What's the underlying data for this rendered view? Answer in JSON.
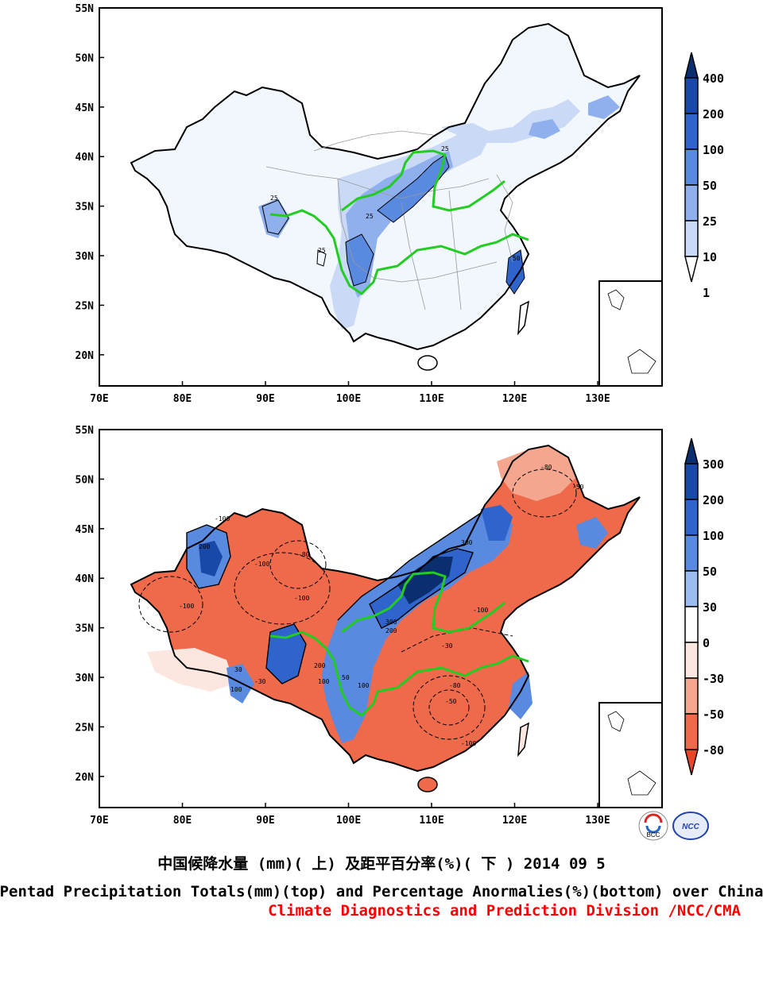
{
  "maps": [
    {
      "id": "top",
      "latitude_ticks": [
        "55N",
        "50N",
        "45N",
        "40N",
        "35N",
        "30N",
        "25N",
        "20N"
      ],
      "longitude_ticks": [
        "70E",
        "80E",
        "90E",
        "100E",
        "110E",
        "120E",
        "130E"
      ],
      "colorbar": {
        "labels": [
          "400",
          "200",
          "100",
          "50",
          "25",
          "10",
          "1"
        ],
        "colors": [
          "#0a2e6e",
          "#1848a8",
          "#2e64cc",
          "#5a8ae0",
          "#8fb0ec",
          "#c9d9f6",
          "#ffffff"
        ]
      },
      "contour_labels": [
        "25",
        "25",
        "25",
        "25",
        "50"
      ]
    },
    {
      "id": "bottom",
      "latitude_ticks": [
        "55N",
        "50N",
        "45N",
        "40N",
        "35N",
        "30N",
        "25N",
        "20N"
      ],
      "longitude_ticks": [
        "70E",
        "80E",
        "90E",
        "100E",
        "110E",
        "120E",
        "130E"
      ],
      "colorbar": {
        "labels": [
          "300",
          "200",
          "100",
          "50",
          "30",
          "0",
          "-30",
          "-50",
          "-80"
        ],
        "colors": [
          "#0a2e6e",
          "#1848a8",
          "#2e64cc",
          "#5a8ae0",
          "#9cbcf0",
          "#ffffff",
          "#fce6e0",
          "#f5a68f",
          "#ee6a4a",
          "#e8462a"
        ]
      },
      "contour_labels": [
        "-100",
        "-100",
        "-80",
        "-100",
        "-100",
        "-50",
        "-30",
        "200",
        "300",
        "300",
        "200",
        "100",
        "50",
        "-80",
        "-50",
        "-100",
        "-30",
        "100",
        "30",
        "-100",
        "-80",
        "100",
        "200"
      ]
    }
  ],
  "colors": {
    "river": "#22cc22",
    "border": "#000000",
    "province": "#999999",
    "credit": "#ff0000"
  },
  "logos": [
    "BCC",
    "NCC"
  ],
  "title_cn": "中国候降水量 (mm)( 上) 及距平百分率(%)( 下 ) 2014 09 5",
  "title_en": "Pentad Precipitation Totals(mm)(top) and Percentage Anormalies(%)(bottom) over China",
  "credit": "Climate Diagnostics and Prediction Division /NCC/CMA"
}
